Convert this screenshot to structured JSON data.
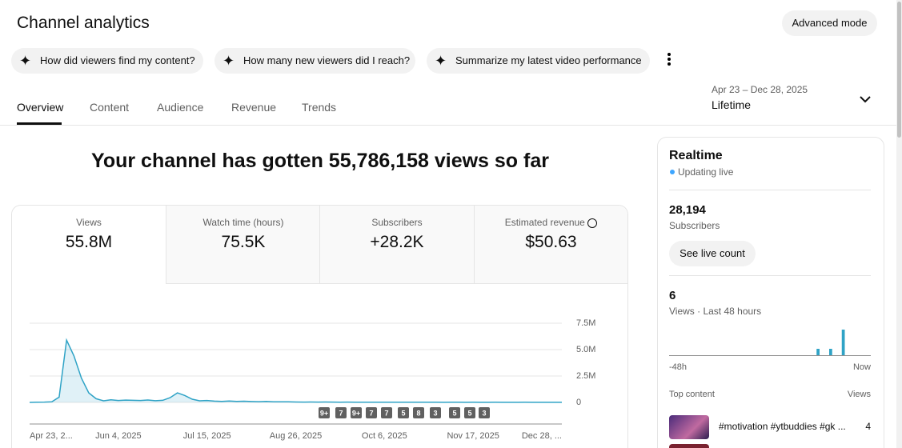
{
  "header": {
    "title": "Channel analytics",
    "button": "Advanced mode"
  },
  "chips": [
    "How did viewers find my content?",
    "How many new viewers did I reach?",
    "Summarize my latest video performance"
  ],
  "tabs": [
    "Overview",
    "Content",
    "Audience",
    "Revenue",
    "Trends"
  ],
  "date_range": {
    "range": "Apr 23 – Dec 28, 2025",
    "period": "Lifetime"
  },
  "headline": "Your channel has gotten 55,786,158 views so far",
  "metrics": [
    {
      "label": "Views",
      "value": "55.8M"
    },
    {
      "label": "Watch time (hours)",
      "value": "75.5K"
    },
    {
      "label": "Subscribers",
      "value": "+28.2K"
    },
    {
      "label": "Estimated revenue",
      "value": "$50.63"
    }
  ],
  "chart_data": {
    "type": "line",
    "color": "#2fa3c6",
    "grid": true,
    "categories": [
      "Apr 23, 2...",
      null,
      null,
      null,
      null,
      null,
      null,
      null,
      null,
      null,
      null,
      null,
      "Jun 4, 2025",
      null,
      null,
      null,
      null,
      null,
      null,
      null,
      null,
      null,
      null,
      null,
      "Jul 15, 2025",
      null,
      null,
      null,
      null,
      null,
      null,
      null,
      null,
      null,
      null,
      null,
      "Aug 26, 2025",
      null,
      null,
      null,
      null,
      null,
      null,
      null,
      null,
      null,
      null,
      null,
      "Oct 6, 2025",
      null,
      null,
      null,
      null,
      null,
      null,
      null,
      null,
      null,
      null,
      null,
      "Nov 17, 2025",
      null,
      null,
      null,
      null,
      null,
      null,
      null,
      null,
      null,
      null,
      null,
      "Dec 28, ..."
    ],
    "values": [
      0,
      20000,
      30000,
      60000,
      500000,
      5900000,
      4400000,
      2300000,
      900000,
      350000,
      150000,
      250000,
      180000,
      220000,
      200000,
      180000,
      230000,
      160000,
      200000,
      450000,
      900000,
      650000,
      300000,
      150000,
      180000,
      120000,
      100000,
      130000,
      90000,
      110000,
      80000,
      70000,
      90000,
      60000,
      50000,
      60000,
      40000,
      30000,
      40000,
      30000,
      35000,
      30000,
      25000,
      30000,
      25000,
      20000,
      25000,
      20000,
      20000,
      15000,
      20000,
      15000,
      15000,
      20000,
      15000,
      15000,
      10000,
      15000,
      15000,
      10000,
      15000,
      10000,
      10000,
      15000,
      10000,
      10000,
      10000,
      15000,
      10000,
      10000,
      10000,
      10000,
      10000
    ],
    "ylim": [
      0,
      7500000
    ],
    "yticks": [
      0,
      {
        "value": 2500000,
        "label": "2.5M"
      },
      {
        "value": 5000000,
        "label": "5.0M"
      },
      {
        "value": 7500000,
        "label": "7.5M"
      }
    ],
    "markers": [
      "9+",
      "7",
      "9+",
      "7",
      "7",
      "5",
      "8",
      "3",
      "5",
      "5",
      "3"
    ]
  },
  "realtime": {
    "title": "Realtime",
    "status": "Updating live",
    "subscribers": "28,194",
    "subscribers_label": "Subscribers",
    "button": "See live count",
    "views": 6,
    "views_label": "Views · Last 48 hours",
    "views_48h": {
      "values": [
        0,
        0,
        0,
        0,
        0,
        0,
        0,
        0,
        0,
        0,
        0,
        0,
        0,
        0,
        0,
        0,
        0,
        0,
        0,
        0,
        0,
        0,
        0,
        0,
        0,
        0,
        0,
        0,
        0,
        0,
        0,
        0,
        0,
        0,
        0,
        1,
        0,
        0,
        1,
        0,
        0,
        4,
        0,
        0,
        0,
        0,
        0,
        0
      ],
      "start": "-48h",
      "end": "Now"
    },
    "top_content_label": "Top content",
    "top_content_metric": "Views",
    "top_content": [
      {
        "title": "#motivation #ytbuddies #gk ...",
        "views": 4
      }
    ]
  }
}
